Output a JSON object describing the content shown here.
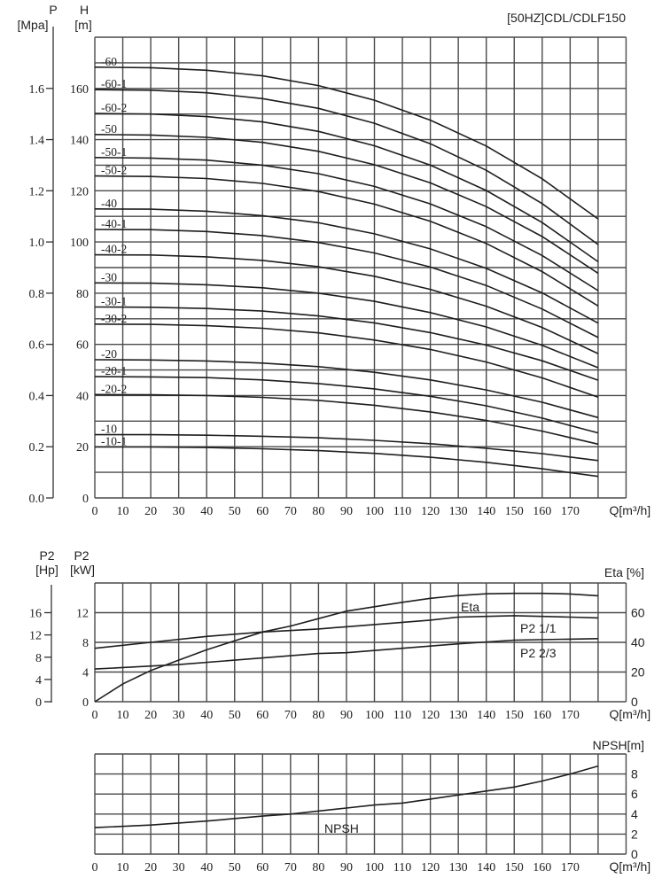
{
  "chart_data": [
    {
      "type": "line",
      "title": "[50HZ]CDL/CDLF150",
      "xlabel": "Q[m³/h]",
      "ylabel_name": "H",
      "ylabel_unit": "[m]",
      "y2label_name": "P",
      "y2label_unit": "[Mpa]",
      "xlim": [
        0,
        190
      ],
      "ylim": [
        0,
        180
      ],
      "grid": true,
      "x_ticks": [
        "0",
        "10",
        "20",
        "30",
        "40",
        "50",
        "60",
        "70",
        "80",
        "90",
        "100",
        "110",
        "120",
        "130",
        "140",
        "150",
        "160",
        "170"
      ],
      "y_ticks": [
        "0",
        "20",
        "40",
        "60",
        "80",
        "100",
        "120",
        "140",
        "160"
      ],
      "y2_ticks": [
        "0.0",
        "0.2",
        "0.4",
        "0.6",
        "0.8",
        "1.0",
        "1.2",
        "1.4",
        "1.6"
      ],
      "x": [
        0,
        20,
        40,
        60,
        80,
        100,
        120,
        140,
        160,
        180
      ],
      "series": [
        {
          "name": "-60",
          "values": [
            168.3,
            168.1,
            167.1,
            164.9,
            161.1,
            155.4,
            147.6,
            137.5,
            124.7,
            109.0
          ]
        },
        {
          "name": "-60-1",
          "values": [
            159.5,
            159.3,
            158.3,
            156.0,
            152.2,
            146.4,
            138.4,
            128.0,
            115.0,
            99.0
          ]
        },
        {
          "name": "-60-2",
          "values": [
            150.2,
            150.0,
            149.0,
            146.9,
            143.2,
            137.6,
            130.0,
            120.1,
            107.6,
            92.3
          ]
        },
        {
          "name": "-50",
          "values": [
            142.0,
            141.8,
            140.9,
            138.9,
            135.4,
            130.2,
            123.1,
            113.8,
            102.1,
            87.8
          ]
        },
        {
          "name": "-50-1",
          "values": [
            133.0,
            132.8,
            132.0,
            130.0,
            126.7,
            121.7,
            114.9,
            106.0,
            94.7,
            81.0
          ]
        },
        {
          "name": "-50-2",
          "values": [
            125.8,
            125.6,
            124.8,
            122.9,
            119.7,
            114.8,
            108.1,
            99.4,
            88.4,
            75.0
          ]
        },
        {
          "name": "-40",
          "values": [
            112.9,
            112.8,
            112.0,
            110.3,
            107.5,
            103.2,
            97.3,
            89.7,
            80.1,
            68.3
          ]
        },
        {
          "name": "-40-1",
          "values": [
            104.9,
            104.8,
            104.1,
            102.5,
            99.8,
            95.7,
            90.2,
            83.0,
            73.8,
            62.7
          ]
        },
        {
          "name": "-40-2",
          "values": [
            95.0,
            94.9,
            94.2,
            92.8,
            90.3,
            86.6,
            81.5,
            74.9,
            66.6,
            56.4
          ]
        },
        {
          "name": "-30",
          "values": [
            84.0,
            83.9,
            83.3,
            82.1,
            80.0,
            76.8,
            72.4,
            66.8,
            59.6,
            50.9
          ]
        },
        {
          "name": "-30-1",
          "values": [
            74.6,
            74.5,
            74.0,
            73.0,
            71.1,
            68.4,
            64.6,
            59.7,
            53.6,
            46.0
          ]
        },
        {
          "name": "-30-2",
          "values": [
            67.9,
            67.8,
            67.3,
            66.3,
            64.5,
            61.7,
            58.0,
            53.1,
            46.9,
            39.4
          ]
        },
        {
          "name": "-20",
          "values": [
            54.0,
            53.9,
            53.5,
            52.7,
            51.3,
            49.1,
            46.1,
            42.2,
            37.4,
            31.4
          ]
        },
        {
          "name": "-20-1",
          "values": [
            47.4,
            47.3,
            47.0,
            46.1,
            44.7,
            42.6,
            39.7,
            36.0,
            31.2,
            25.4
          ]
        },
        {
          "name": "-20-2",
          "values": [
            40.4,
            40.3,
            40.0,
            39.3,
            38.1,
            36.2,
            33.6,
            30.3,
            26.1,
            21.0
          ]
        },
        {
          "name": "-10",
          "values": [
            24.7,
            24.7,
            24.5,
            24.1,
            23.5,
            22.5,
            21.2,
            19.4,
            17.3,
            14.6
          ]
        },
        {
          "name": "-10-1",
          "values": [
            19.9,
            19.9,
            19.7,
            19.2,
            18.5,
            17.4,
            15.9,
            13.9,
            11.4,
            8.4
          ]
        }
      ]
    },
    {
      "type": "line",
      "xlabel": "Q[m³/h]",
      "ylabel_name": "P2",
      "ylabel_unit": "[kW]",
      "y2label_name": "P2",
      "y2label_unit": "[Hp]",
      "y3label": "Eta [%]",
      "xlim": [
        0,
        190
      ],
      "ylim": [
        0,
        16
      ],
      "y3lim": [
        0,
        80
      ],
      "grid": true,
      "x_ticks": [
        "0",
        "10",
        "20",
        "30",
        "40",
        "50",
        "60",
        "70",
        "80",
        "90",
        "100",
        "110",
        "120",
        "130",
        "140",
        "150",
        "160",
        "170"
      ],
      "y_ticks": [
        "0",
        "4",
        "8",
        "12"
      ],
      "y2_ticks": [
        "0",
        "4",
        "8",
        "12",
        "16"
      ],
      "y3_ticks": [
        "0",
        "20",
        "40",
        "60"
      ],
      "series": [
        {
          "name": "Eta",
          "axis": "Eta [%]",
          "x": [
            0,
            10,
            20,
            30,
            40,
            50,
            60,
            70,
            80,
            90,
            100,
            110,
            120,
            130,
            140,
            150,
            160,
            170,
            180
          ],
          "values": [
            0,
            12,
            21,
            28,
            35,
            41,
            47,
            51,
            56,
            61,
            64,
            67,
            69.7,
            71.5,
            72.7,
            73,
            73,
            72.6,
            71.4
          ]
        },
        {
          "name": "P2 1/1",
          "axis": "P2 [kW]",
          "x": [
            0,
            20,
            40,
            60,
            80,
            90,
            100,
            110,
            120,
            130,
            140,
            150,
            160,
            170,
            180
          ],
          "values": [
            7.2,
            8.0,
            8.8,
            9.4,
            9.8,
            10.1,
            10.4,
            10.7,
            11.0,
            11.4,
            11.5,
            11.6,
            11.5,
            11.4,
            11.3
          ]
        },
        {
          "name": "P2 2/3",
          "axis": "P2 [kW]",
          "x": [
            0,
            30,
            60,
            80,
            90,
            130,
            150,
            180
          ],
          "values": [
            4.4,
            5.0,
            5.9,
            6.5,
            6.6,
            7.8,
            8.3,
            8.5
          ]
        }
      ]
    },
    {
      "type": "line",
      "xlabel": "Q[m³/h]",
      "y3label": "NPSH[m]",
      "xlim": [
        0,
        190
      ],
      "y3lim": [
        0,
        10
      ],
      "grid": true,
      "x_ticks": [
        "0",
        "10",
        "20",
        "30",
        "40",
        "50",
        "60",
        "70",
        "80",
        "90",
        "100",
        "110",
        "120",
        "130",
        "140",
        "150",
        "160",
        "170"
      ],
      "y3_ticks": [
        "0",
        "2",
        "4",
        "6",
        "8"
      ],
      "series": [
        {
          "name": "NPSH",
          "x": [
            0,
            20,
            40,
            60,
            70,
            90,
            100,
            110,
            120,
            130,
            140,
            150,
            160,
            170,
            180
          ],
          "values": [
            2.65,
            2.9,
            3.3,
            3.8,
            4.0,
            4.6,
            4.9,
            5.1,
            5.5,
            5.9,
            6.3,
            6.7,
            7.3,
            8.0,
            8.8
          ]
        }
      ]
    }
  ]
}
